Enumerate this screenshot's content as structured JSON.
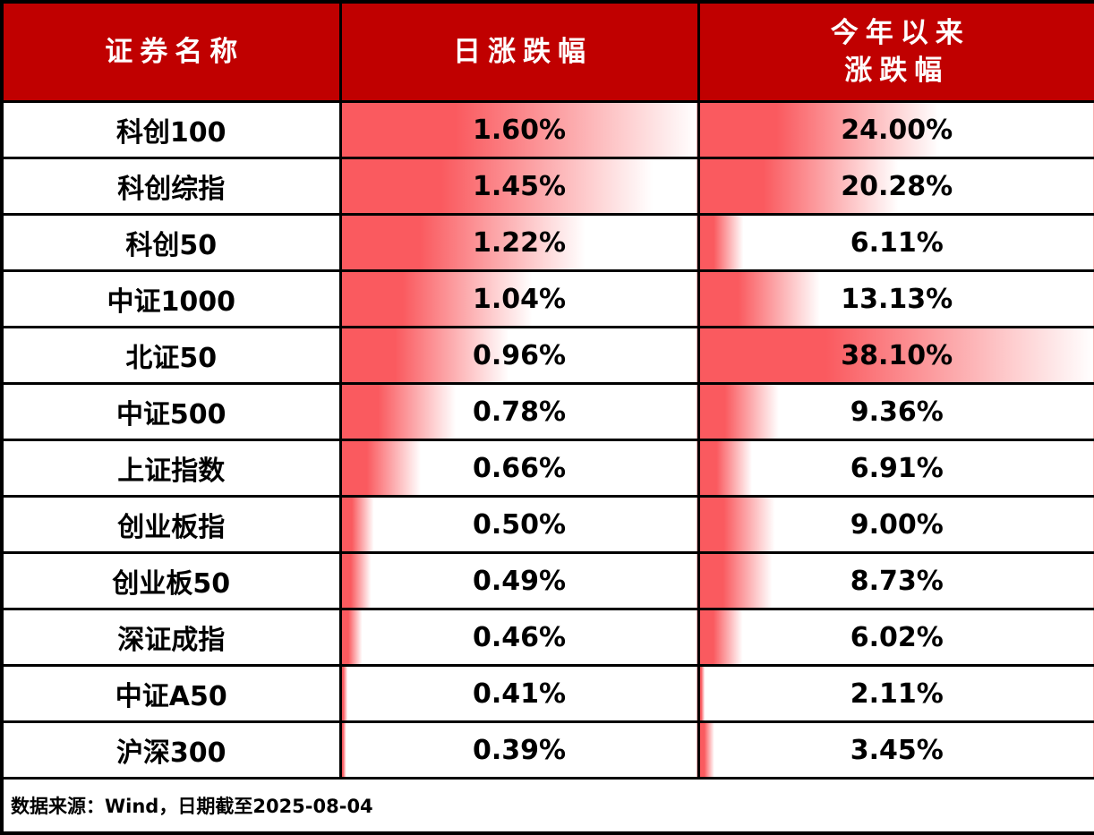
{
  "table": {
    "headers": {
      "name": "证券名称",
      "daily": "日涨跌幅",
      "ytd_line1": "今年以来",
      "ytd_line2": "涨跌幅"
    },
    "rows": [
      {
        "name": "科创100",
        "daily": "1.60%",
        "ytd": "24.00%"
      },
      {
        "name": "科创综指",
        "daily": "1.45%",
        "ytd": "20.28%"
      },
      {
        "name": "科创50",
        "daily": "1.22%",
        "ytd": "6.11%"
      },
      {
        "name": "中证1000",
        "daily": "1.04%",
        "ytd": "13.13%"
      },
      {
        "name": "北证50",
        "daily": "0.96%",
        "ytd": "38.10%"
      },
      {
        "name": "中证500",
        "daily": "0.78%",
        "ytd": "9.36%"
      },
      {
        "name": "上证指数",
        "daily": "0.66%",
        "ytd": "6.91%"
      },
      {
        "name": "创业板指",
        "daily": "0.50%",
        "ytd": "9.00%"
      },
      {
        "name": "创业板50",
        "daily": "0.49%",
        "ytd": "8.73%"
      },
      {
        "name": "深证成指",
        "daily": "0.46%",
        "ytd": "6.02%"
      },
      {
        "name": "中证A50",
        "daily": "0.41%",
        "ytd": "2.11%"
      },
      {
        "name": "沪深300",
        "daily": "0.39%",
        "ytd": "3.45%"
      }
    ],
    "footer": "数据来源：Wind，日期截至2025-08-04"
  },
  "chart_data": {
    "type": "table",
    "columns": [
      "证券名称",
      "日涨跌幅",
      "今年以来涨跌幅"
    ],
    "units": "percent",
    "rows": [
      [
        "科创100",
        1.6,
        24.0
      ],
      [
        "科创综指",
        1.45,
        20.28
      ],
      [
        "科创50",
        1.22,
        6.11
      ],
      [
        "中证1000",
        1.04,
        13.13
      ],
      [
        "北证50",
        0.96,
        38.1
      ],
      [
        "中证500",
        0.78,
        9.36
      ],
      [
        "上证指数",
        0.66,
        6.91
      ],
      [
        "创业板指",
        0.5,
        9.0
      ],
      [
        "创业板50",
        0.49,
        8.73
      ],
      [
        "深证成指",
        0.46,
        6.02
      ],
      [
        "中证A50",
        0.41,
        2.11
      ],
      [
        "沪深300",
        0.39,
        3.45
      ]
    ],
    "data_bars": {
      "style": "gradient-left-to-right",
      "daily": {
        "min": 0.39,
        "max": 1.6
      },
      "ytd": {
        "min": 2.11,
        "max": 38.1
      }
    },
    "source_note": "数据来源：Wind，日期截至2025-08-04"
  },
  "colors": {
    "header_bg": "#c00000",
    "header_text": "#ffffff",
    "bar_red": "#fa5a5f",
    "border": "#000000",
    "text": "#000000"
  }
}
